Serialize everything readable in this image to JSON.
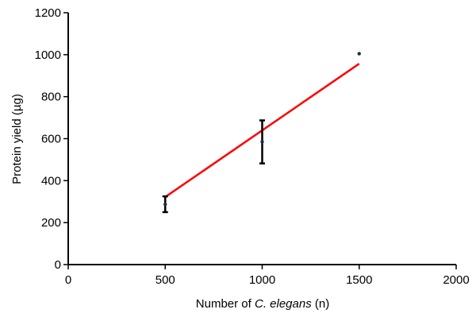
{
  "chart_data": {
    "type": "scatter",
    "xlabel_parts": [
      "Number of ",
      "C. elegans",
      " (n)"
    ],
    "ylabel": "Protein yield (µg)",
    "xlim": [
      0,
      2000
    ],
    "ylim": [
      0,
      1200
    ],
    "x_ticks": [
      "0",
      "500",
      "1000",
      "1500",
      "2000"
    ],
    "y_ticks": [
      "0",
      "200",
      "400",
      "600",
      "800",
      "1000",
      "1200"
    ],
    "grid": false,
    "legend": "none",
    "points": [
      {
        "x": 500,
        "y": 287,
        "err_low": 250,
        "err_high": 325
      },
      {
        "x": 1000,
        "y": 585,
        "err_low": 482,
        "err_high": 687
      },
      {
        "x": 1500,
        "y": 1005,
        "err_low": 1005,
        "err_high": 1005
      }
    ],
    "trendline": {
      "x": [
        500,
        1500
      ],
      "y": [
        322,
        957
      ]
    },
    "colors": {
      "trendline": "#ff0000",
      "points": "#1f2a44",
      "error_bars": "#000000",
      "axes": "#000000"
    }
  }
}
